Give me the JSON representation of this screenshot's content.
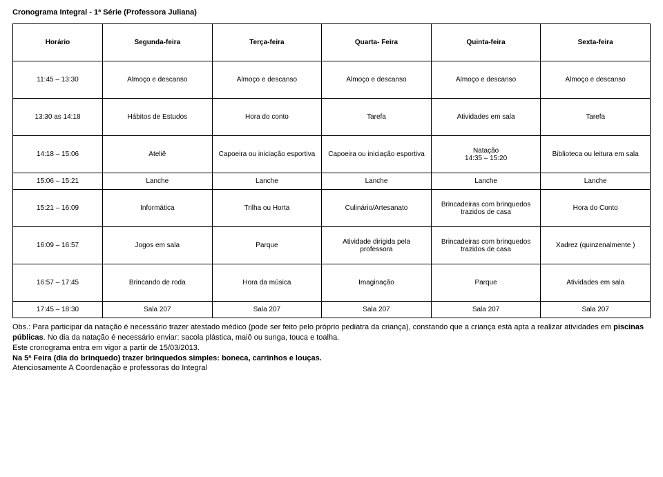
{
  "title": "Cronograma Integral - 1ª Série (Professora Juliana)",
  "headers": {
    "time": "Horário",
    "mon": "Segunda-feira",
    "tue": "Terça-feira",
    "wed": "Quarta- Feira",
    "thu": "Quinta-feira",
    "fri": "Sexta-feira"
  },
  "rows": {
    "r1": {
      "time": "11:45 – 13:30",
      "mon": "Almoço e descanso",
      "tue": "Almoço e descanso",
      "wed": "Almoço e descanso",
      "thu": "Almoço e descanso",
      "fri": "Almoço e descanso"
    },
    "r2": {
      "time": "13:30 as 14:18",
      "mon": "Hábitos de Estudos",
      "tue": "Hora do conto",
      "wed": "Tarefa",
      "thu": "Atividades em sala",
      "fri": "Tarefa"
    },
    "r3": {
      "time": "14:18 – 15:06",
      "mon": "Ateliê",
      "tue": "Capoeira ou iniciação esportiva",
      "wed": "Capoeira ou iniciação esportiva",
      "thu_a": "Natação",
      "thu_b": "14:35 – 15:20",
      "fri": "Biblioteca ou leitura em sala"
    },
    "r4": {
      "time": "15:06 – 15:21",
      "mon": "Lanche",
      "tue": "Lanche",
      "wed": "Lanche",
      "thu": "Lanche",
      "fri": "Lanche"
    },
    "r5": {
      "time": "15:21 – 16:09",
      "mon": "Informática",
      "tue": "Trilha ou Horta",
      "wed": "Culinário/Artesanato",
      "thu": "Brincadeiras com brinquedos trazidos de casa",
      "fri": "Hora do Conto"
    },
    "r6": {
      "time": "16:09 – 16:57",
      "mon": "Jogos em sala",
      "tue": "Parque",
      "wed": "Atividade dirigida pela professora",
      "thu": "Brincadeiras com brinquedos trazidos de casa",
      "fri": "Xadrez (quinzenalmente )"
    },
    "r7": {
      "time": "16:57 – 17:45",
      "mon": "Brincando de roda",
      "tue": "Hora da música",
      "wed": "Imaginação",
      "thu": "Parque",
      "fri": "Atividades em sala"
    },
    "r8": {
      "time": "17:45 – 18:30",
      "mon": "Sala 207",
      "tue": "Sala 207",
      "wed": "Sala 207",
      "thu": "Sala 207",
      "fri": "Sala 207"
    }
  },
  "footer": {
    "p1a": "Obs.: Para participar da natação é necessário trazer atestado médico (pode ser feito pelo próprio pediatra da criança), constando que a criança está apta a realizar atividades em ",
    "p1b": "piscinas públicas",
    "p1c": ". No dia da natação é necessário enviar: sacola plástica, maiô ou sunga, touca e toalha.",
    "p2": "Este cronograma entra em vigor a partir de 15/03/2013.",
    "p3": "Na 5ª Feira (dia do brinquedo) trazer brinquedos simples: boneca, carrinhos e louças.",
    "p4": "Atenciosamente A Coordenação e professoras do Integral"
  }
}
